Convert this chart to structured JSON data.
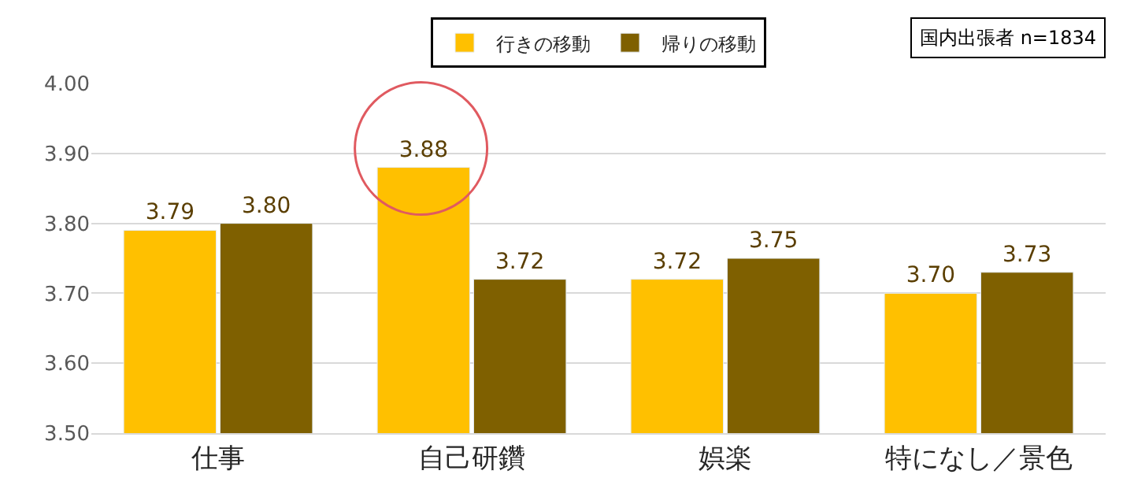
{
  "chart_data": {
    "type": "bar",
    "categories": [
      "仕事",
      "自己研鑽",
      "娯楽",
      "特になし／景色"
    ],
    "series": [
      {
        "name": "行きの移動",
        "color": "#ffc000",
        "values": [
          3.79,
          3.88,
          3.72,
          3.7
        ],
        "value_labels": [
          "3.79",
          "3.88",
          "3.72",
          "3.70"
        ]
      },
      {
        "name": "帰りの移動",
        "color": "#7f6000",
        "values": [
          3.8,
          3.72,
          3.75,
          3.73
        ],
        "value_labels": [
          "3.80",
          "3.72",
          "3.75",
          "3.73"
        ]
      }
    ],
    "ylim": [
      3.5,
      4.0
    ],
    "yticks": [
      {
        "value": 3.5,
        "label": "3.50"
      },
      {
        "value": 3.6,
        "label": "3.60"
      },
      {
        "value": 3.7,
        "label": "3.70"
      },
      {
        "value": 3.8,
        "label": "3.80"
      },
      {
        "value": 3.9,
        "label": "3.90"
      },
      {
        "value": 4.0,
        "label": "4.00"
      }
    ],
    "grid": "y",
    "legend": "top",
    "annotations": [
      "国内出張者 n=1834"
    ]
  }
}
